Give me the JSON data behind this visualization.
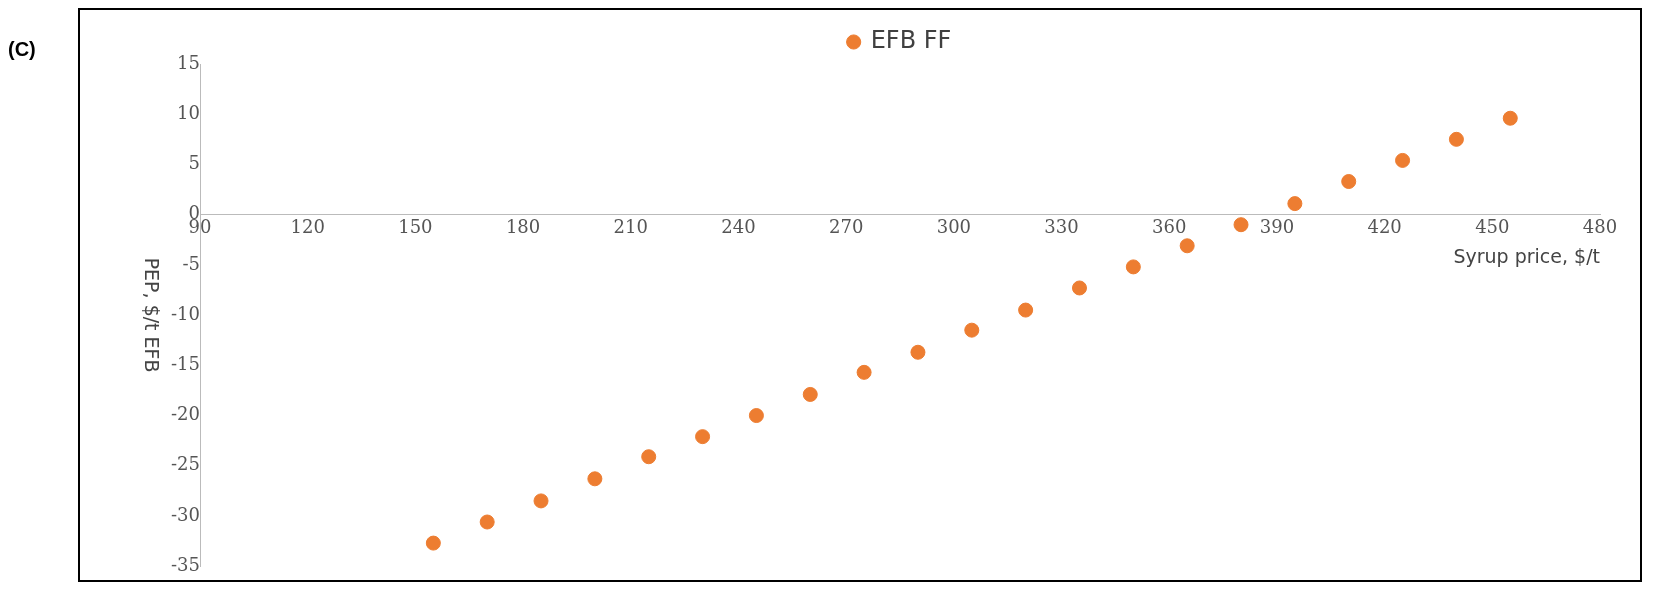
{
  "chart_data": {
    "type": "scatter",
    "xlabel": "Syrup price, $/t",
    "ylabel": "PEP, $/t EFB",
    "annotations": [
      "(C)"
    ],
    "x": [
      155,
      170,
      185,
      200,
      215,
      230,
      245,
      260,
      275,
      290,
      305,
      320,
      335,
      350,
      365,
      380,
      395,
      410,
      425,
      440,
      455
    ],
    "series": [
      {
        "name": "EFB FF",
        "color": "#ed7d31",
        "values": [
          -32.7,
          -30.6,
          -28.5,
          -26.3,
          -24.1,
          -22.1,
          -20.0,
          -17.9,
          -15.7,
          -13.7,
          -11.5,
          -9.5,
          -7.3,
          -5.2,
          -3.1,
          -1.0,
          1.1,
          3.3,
          5.4,
          7.5,
          9.6
        ]
      }
    ],
    "xlim": [
      90,
      480
    ],
    "xticks": [
      90,
      120,
      150,
      180,
      210,
      240,
      270,
      300,
      330,
      360,
      390,
      420,
      450,
      480
    ],
    "ylim": [
      -35,
      15
    ],
    "yticks": [
      -35,
      -30,
      -25,
      -20,
      -15,
      -10,
      -5,
      0,
      5,
      10,
      15
    ],
    "grid": false,
    "legend": "top",
    "marker": "circle"
  }
}
